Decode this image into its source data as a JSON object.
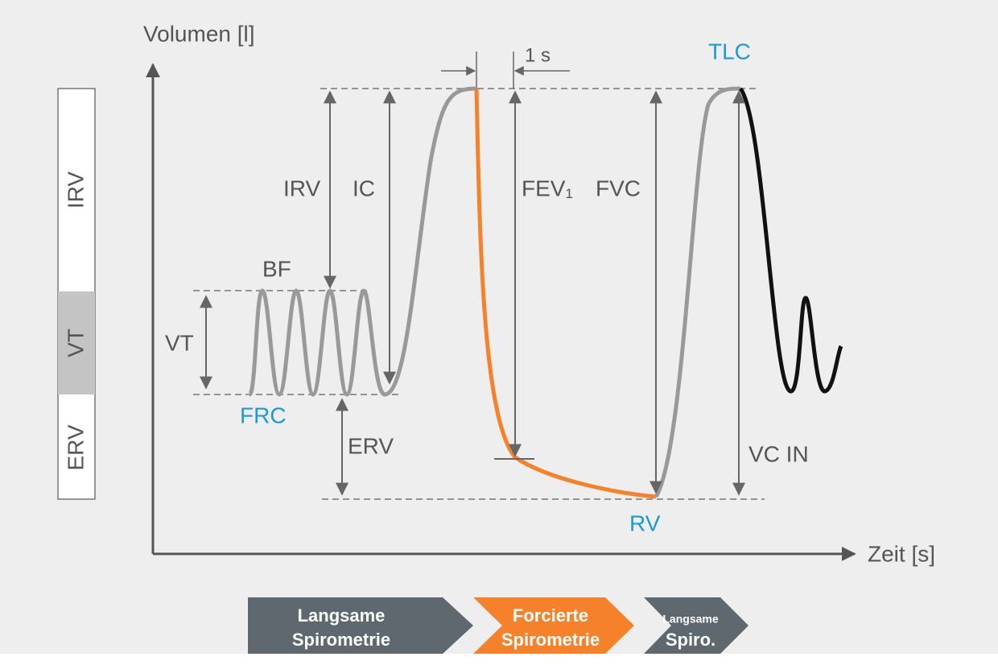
{
  "axes": {
    "y_label": "Volumen [l]",
    "x_label": "Zeit [s]"
  },
  "markers": {
    "one_second": "1 s",
    "tlc": "TLC",
    "frc": "FRC",
    "rv": "RV"
  },
  "measures": {
    "irv": "IRV",
    "ic": "IC",
    "fev1": "FEV₁",
    "fvc": "FVC",
    "bf": "BF",
    "vt": "VT",
    "erv": "ERV",
    "vc_in": "VC IN"
  },
  "side_bar": [
    "IRV",
    "VT",
    "ERV"
  ],
  "phases": [
    {
      "lines": [
        "Langsame",
        "Spirometrie"
      ]
    },
    {
      "lines": [
        "Forcierte",
        "Spirometrie"
      ]
    },
    {
      "lines": [
        "Langsame",
        "Spiro."
      ]
    }
  ]
}
